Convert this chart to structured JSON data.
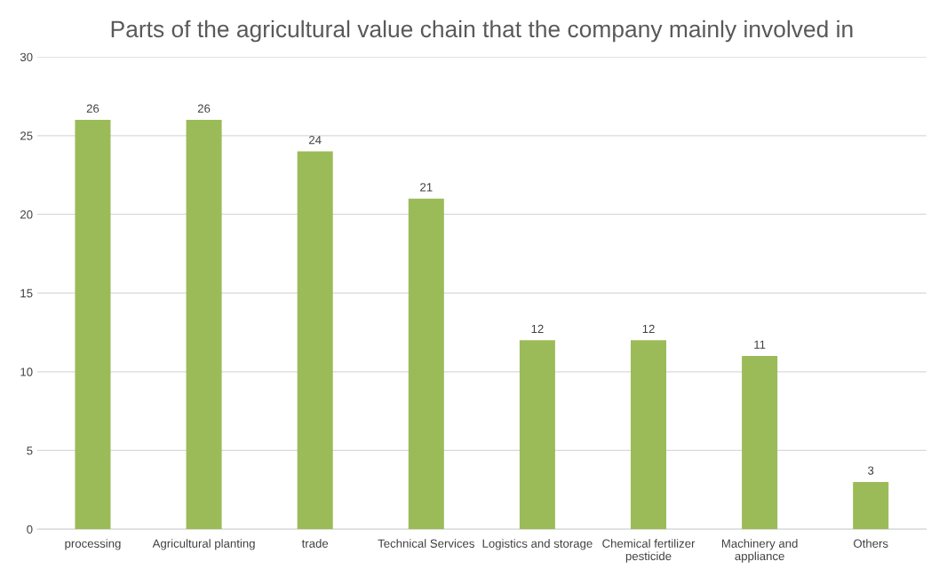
{
  "chart_data": {
    "type": "bar",
    "title": "Parts of the agricultural value chain that the company mainly involved in",
    "categories": [
      "processing",
      "Agricultural planting",
      "trade",
      "Technical Services",
      "Logistics and storage",
      "Chemical fertilizer\npesticide",
      "Machinery and\nappliance",
      "Others"
    ],
    "values": [
      26,
      26,
      24,
      21,
      12,
      12,
      11,
      3
    ],
    "color": "#9bbb59",
    "ylim": [
      0,
      30
    ],
    "yticks": [
      0,
      5,
      10,
      15,
      20,
      25,
      30
    ],
    "grid": "y",
    "data_labels": true
  }
}
